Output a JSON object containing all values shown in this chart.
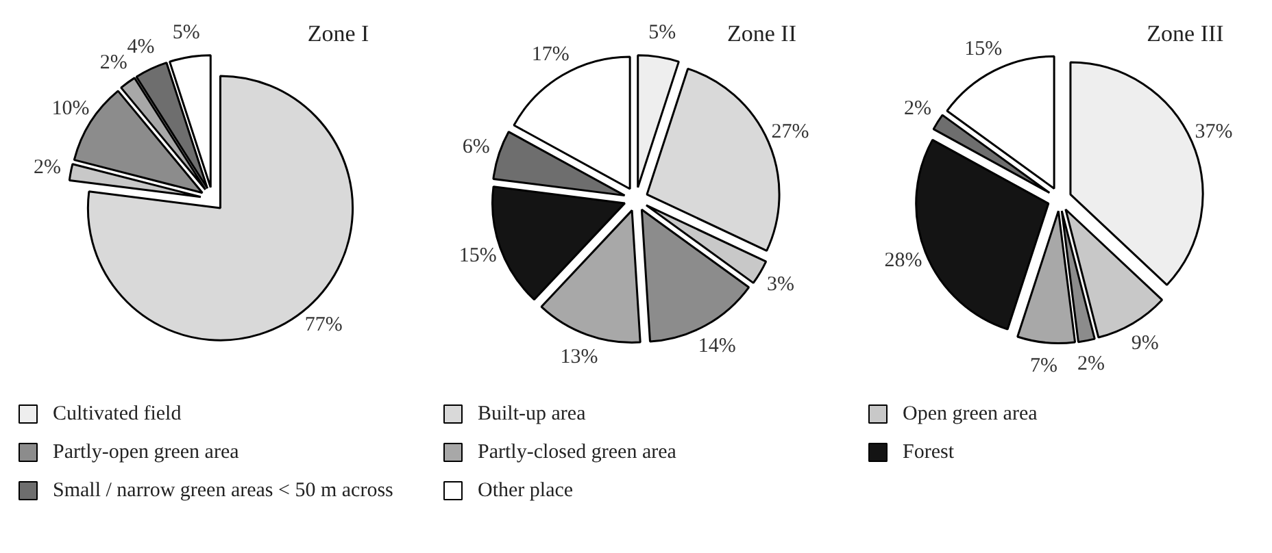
{
  "chart_data": [
    {
      "type": "pie",
      "title": "Zone I",
      "legend": false,
      "categories": [
        null,
        null,
        null,
        null,
        null,
        null
      ],
      "values": [
        77,
        2,
        10,
        2,
        4,
        5
      ],
      "value_labels": [
        "77%",
        "2%",
        "10%",
        "2%",
        "4%",
        "5%"
      ],
      "colors": [
        "#d9d9d9",
        "#c8c8c8",
        "#8c8c8c",
        "#a8a8a8",
        "#6e6e6e",
        "#ffffff"
      ]
    },
    {
      "type": "pie",
      "title": "Zone II",
      "legend": "bottom",
      "categories": [
        "Cultivated field",
        "Built-up area",
        "Open green area",
        "Partly-open green area",
        "Partly-closed green area",
        "Forest",
        "Small / narrow green areas < 50 m across",
        "Other place"
      ],
      "values": [
        5,
        27,
        3,
        14,
        13,
        15,
        6,
        17
      ],
      "value_labels": [
        "5%",
        "27%",
        "3%",
        "14%",
        "13%",
        "15%",
        "6%",
        "17%"
      ],
      "colors": [
        "#eeeeee",
        "#d9d9d9",
        "#c8c8c8",
        "#8c8c8c",
        "#a8a8a8",
        "#141414",
        "#6e6e6e",
        "#ffffff"
      ]
    },
    {
      "type": "pie",
      "title": "Zone III",
      "legend": false,
      "categories": [
        null,
        null,
        null,
        null,
        null,
        null,
        null
      ],
      "values": [
        37,
        9,
        2,
        7,
        28,
        2,
        15
      ],
      "value_labels": [
        "37%",
        "9%",
        "2%",
        "7%",
        "28%",
        "2%",
        "15%"
      ],
      "colors": [
        "#eeeeee",
        "#c8c8c8",
        "#8c8c8c",
        "#a8a8a8",
        "#141414",
        "#6e6e6e",
        "#ffffff"
      ]
    }
  ]
}
